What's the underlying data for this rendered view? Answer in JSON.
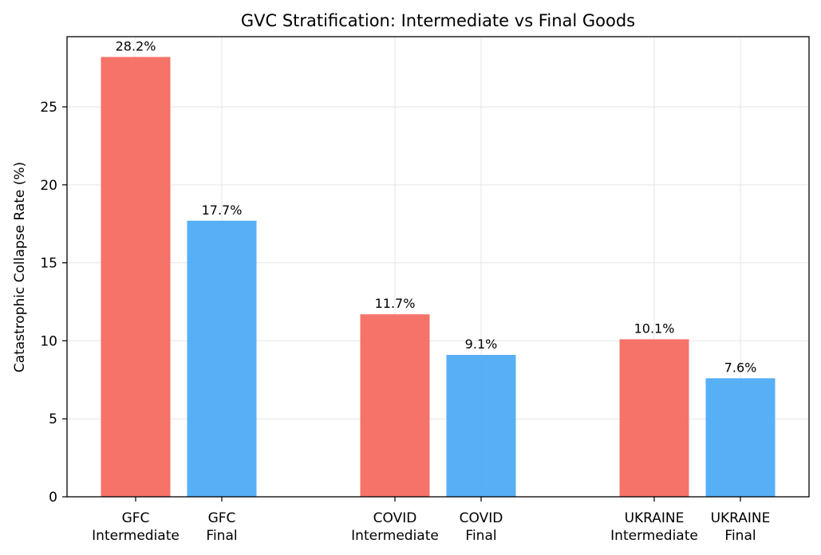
{
  "chart_data": {
    "type": "bar",
    "title": "GVC Stratification: Intermediate vs Final Goods",
    "xlabel": "",
    "ylabel": "Catastrophic Collapse Rate (%)",
    "ylim": [
      0,
      29.5
    ],
    "yticks": [
      0,
      5,
      10,
      15,
      20,
      25
    ],
    "grid": true,
    "colors": {
      "intermediate": "#f66b61",
      "final": "#4eabf5"
    },
    "bars": [
      {
        "category": [
          "GFC",
          "Intermediate"
        ],
        "group": "intermediate",
        "value": 28.2,
        "label": "28.2%"
      },
      {
        "category": [
          "GFC",
          "Final"
        ],
        "group": "final",
        "value": 17.7,
        "label": "17.7%"
      },
      {
        "category": [
          "COVID",
          "Intermediate"
        ],
        "group": "intermediate",
        "value": 11.7,
        "label": "11.7%"
      },
      {
        "category": [
          "COVID",
          "Final"
        ],
        "group": "final",
        "value": 9.1,
        "label": "9.1%"
      },
      {
        "category": [
          "UKRAINE",
          "Intermediate"
        ],
        "group": "intermediate",
        "value": 10.1,
        "label": "10.1%"
      },
      {
        "category": [
          "UKRAINE",
          "Final"
        ],
        "group": "final",
        "value": 7.6,
        "label": "7.6%"
      }
    ]
  }
}
